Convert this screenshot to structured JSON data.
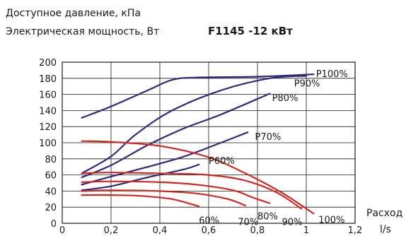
{
  "header": {
    "line1": "Доступное давление, кПа",
    "line2": "Электрическая мощность, Вт",
    "title": "F1145 -12 кВт"
  },
  "chart_data": {
    "type": "line",
    "title": "F1145 -12 кВт",
    "ylabel": "Доступное давление, кПа / Электрическая мощность, Вт",
    "xlabel": [
      "Расход",
      "l/s"
    ],
    "xlim": [
      0,
      1.2
    ],
    "ylim": [
      0,
      200
    ],
    "x_ticks": [
      "0",
      "0,2",
      "0,4",
      "0,6",
      "0,8",
      "1",
      "1,2"
    ],
    "y_ticks": [
      "0",
      "20",
      "40",
      "60",
      "80",
      "100",
      "120",
      "140",
      "160",
      "180",
      "200"
    ],
    "grid": true,
    "colors": {
      "power": "#2e2a7e",
      "pressure": "#d3261f"
    },
    "series": [
      {
        "name": "P100%",
        "group": "power",
        "x": [
          0.08,
          0.2,
          0.35,
          0.45,
          0.55,
          0.8,
          1.03
        ],
        "y": [
          131,
          145,
          165,
          178,
          181,
          182,
          185
        ]
      },
      {
        "name": "P90%",
        "group": "power",
        "x": [
          0.08,
          0.2,
          0.3,
          0.45,
          0.65,
          0.85,
          1.0
        ],
        "y": [
          62,
          83,
          110,
          140,
          165,
          180,
          183
        ]
      },
      {
        "name": "P80%",
        "group": "power",
        "x": [
          0.08,
          0.2,
          0.35,
          0.5,
          0.65,
          0.85
        ],
        "y": [
          57,
          72,
          97,
          118,
          135,
          161
        ]
      },
      {
        "name": "P70%",
        "group": "power",
        "x": [
          0.08,
          0.2,
          0.35,
          0.5,
          0.65,
          0.76
        ],
        "y": [
          48,
          58,
          70,
          83,
          100,
          113
        ]
      },
      {
        "name": "P60%",
        "group": "power",
        "x": [
          0.08,
          0.2,
          0.35,
          0.5,
          0.56
        ],
        "y": [
          41,
          46,
          57,
          67,
          73
        ]
      },
      {
        "name": "100%",
        "group": "pressure",
        "x": [
          0.08,
          0.2,
          0.4,
          0.6,
          0.75,
          0.9,
          1.03
        ],
        "y": [
          102,
          101,
          96,
          82,
          62,
          38,
          12
        ]
      },
      {
        "name": "90%",
        "group": "pressure",
        "x": [
          0.08,
          0.2,
          0.4,
          0.6,
          0.75,
          0.88,
          0.98
        ],
        "y": [
          62,
          63,
          62,
          60,
          53,
          38,
          18
        ]
      },
      {
        "name": "80%",
        "group": "pressure",
        "x": [
          0.08,
          0.2,
          0.4,
          0.55,
          0.7,
          0.78,
          0.85
        ],
        "y": [
          51,
          52,
          51,
          48,
          41,
          32,
          25
        ]
      },
      {
        "name": "70%",
        "group": "pressure",
        "x": [
          0.08,
          0.2,
          0.4,
          0.55,
          0.68,
          0.75
        ],
        "y": [
          40,
          41,
          40,
          37,
          30,
          22
        ]
      },
      {
        "name": "60%",
        "group": "pressure",
        "x": [
          0.08,
          0.2,
          0.32,
          0.45,
          0.56
        ],
        "y": [
          35,
          35,
          34,
          30,
          21
        ]
      }
    ],
    "series_labels": {
      "P100%": {
        "x": 1.04,
        "y": 186
      },
      "P90%": {
        "x": 0.95,
        "y": 174
      },
      "P80%": {
        "x": 0.86,
        "y": 156
      },
      "P70%": {
        "x": 0.79,
        "y": 108
      },
      "P60%": {
        "x": 0.6,
        "y": 78
      },
      "60%": {
        "x": 0.56,
        "y": 4
      },
      "70%": {
        "x": 0.72,
        "y": 2
      },
      "80%": {
        "x": 0.8,
        "y": 9
      },
      "90%": {
        "x": 0.9,
        "y": 2
      },
      "100%": {
        "x": 1.05,
        "y": 5
      }
    }
  }
}
